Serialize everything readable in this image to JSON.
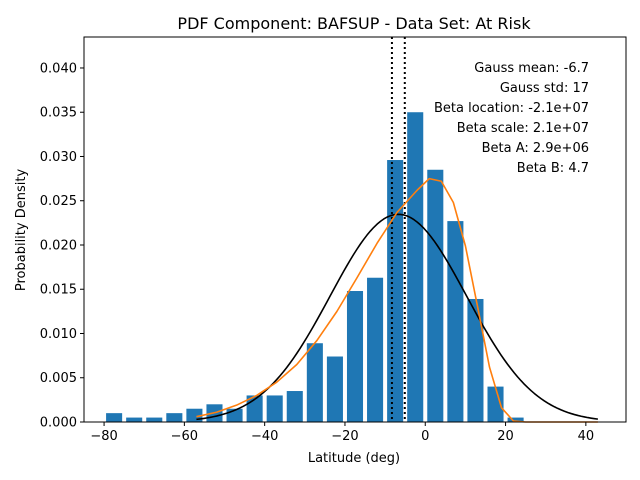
{
  "chart_data": {
    "type": "bar",
    "title": "PDF Component: BAFSUP - Data Set: At Risk",
    "xlabel": "Latitude (deg)",
    "ylabel": "Probability Density",
    "xlim": [
      -85,
      50
    ],
    "ylim": [
      0,
      0.0435
    ],
    "x_ticks": [
      -80,
      -60,
      -40,
      -20,
      0,
      20,
      40
    ],
    "x_tick_labels": [
      "−80",
      "−60",
      "−40",
      "−20",
      "0",
      "20",
      "40"
    ],
    "y_ticks": [
      0.0,
      0.005,
      0.01,
      0.015,
      0.02,
      0.025,
      0.03,
      0.035,
      0.04
    ],
    "y_tick_labels": [
      "0.000",
      "0.005",
      "0.010",
      "0.015",
      "0.020",
      "0.025",
      "0.030",
      "0.035",
      "0.040"
    ],
    "bar_width": 4,
    "bar_color": "#1f77b4",
    "bars": {
      "x": [
        -77.5,
        -72.5,
        -67.5,
        -62.5,
        -57.5,
        -52.5,
        -47.5,
        -42.5,
        -37.5,
        -32.5,
        -27.5,
        -22.5,
        -17.5,
        -12.5,
        -7.5,
        -2.5,
        2.5,
        7.5,
        12.5,
        17.5,
        22.5
      ],
      "values": [
        0.001,
        0.0005,
        0.0005,
        0.001,
        0.0015,
        0.002,
        0.0015,
        0.003,
        0.003,
        0.0035,
        0.0089,
        0.0074,
        0.0148,
        0.0163,
        0.0296,
        0.035,
        0.0285,
        0.0227,
        0.0139,
        0.004,
        0.0005
      ]
    },
    "series": [
      {
        "kind": "gaussian",
        "color": "#000000",
        "x_range": [
          -57,
          43
        ],
        "mean": -6.7,
        "std": 17
      },
      {
        "kind": "beta",
        "color": "#ff7f0e",
        "x": [
          -57,
          -52,
          -47,
          -42,
          -37,
          -32,
          -27,
          -22,
          -17,
          -12,
          -7,
          -2,
          1,
          4,
          7,
          10,
          13,
          16,
          19,
          22,
          25,
          28,
          31,
          34,
          37,
          40,
          43
        ],
        "values": [
          0.0006,
          0.0011,
          0.0019,
          0.003,
          0.0045,
          0.0065,
          0.0092,
          0.0125,
          0.0163,
          0.0202,
          0.0237,
          0.0262,
          0.0275,
          0.0272,
          0.0248,
          0.0199,
          0.0131,
          0.0062,
          0.0016,
          0.0001,
          0.0,
          0.0,
          0.0,
          0.0,
          0.0,
          0.0,
          0.0
        ]
      }
    ],
    "vlines": {
      "x": [
        -8.3,
        -5.1
      ],
      "style": "dotted",
      "color": "#000000"
    },
    "annotations": [
      "Gauss mean: -6.7",
      "Gauss std: 17",
      "Beta location: -2.1e+07",
      "Beta scale: 2.1e+07",
      "Beta A: 2.9e+06",
      "Beta B: 4.7"
    ]
  }
}
